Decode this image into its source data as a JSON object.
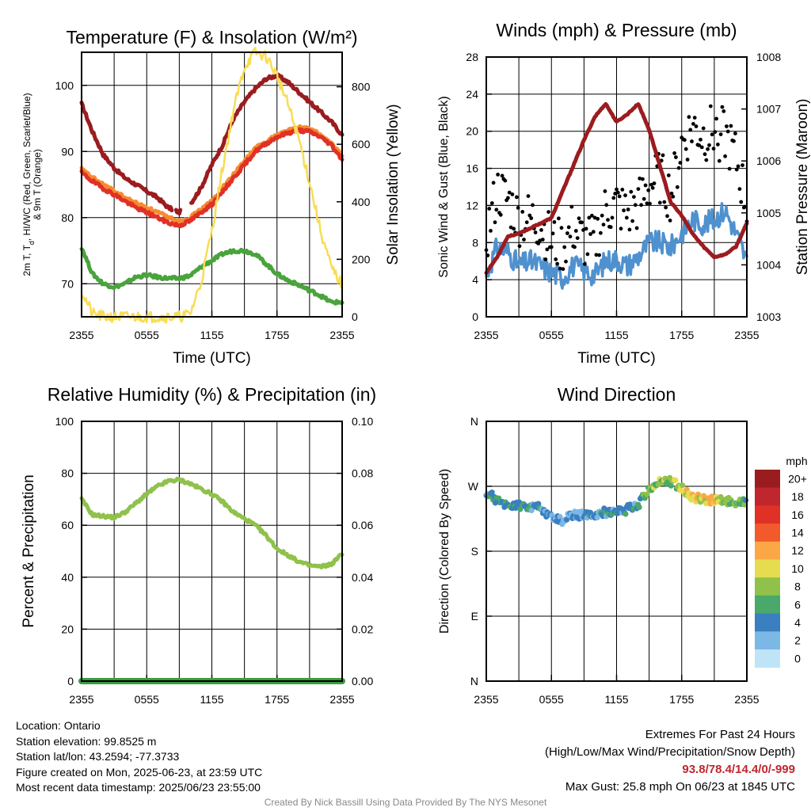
{
  "chart_data": [
    {
      "type": "line",
      "title": "Temperature (F) & Insolation (W/m²)",
      "xlabel": "Time (UTC)",
      "ylabel": "2m T, Td, HI/WC (Red, Green, Scarlet/Blue) & 9m T (Orange)",
      "ylabel_lines": [
        "2m T, T",
        "d",
        ", HI/WC (Red, Green, Scarlet/Blue)",
        "& 9m T (Orange)"
      ],
      "y2label": "Solar Insolation (Yellow)",
      "xticks": [
        "2355",
        "0555",
        "1155",
        "1755",
        "2355"
      ],
      "ylim": [
        65,
        105
      ],
      "yticks": [
        70,
        80,
        90,
        100
      ],
      "y2lim": [
        0,
        920
      ],
      "y2ticks": [
        0,
        200,
        400,
        600,
        800
      ],
      "grid": true,
      "x_hours": [
        0,
        1,
        2,
        3,
        4,
        5,
        6,
        7,
        8,
        9,
        10,
        11,
        12,
        13,
        14,
        15,
        16,
        17,
        18,
        19,
        20,
        21,
        22,
        23,
        24
      ],
      "series": [
        {
          "name": "HI/WC",
          "color": "#9b1c1f",
          "values": [
            97.2,
            93,
            89.5,
            87.5,
            86,
            85,
            84,
            83,
            81.5,
            80.8,
            82,
            84.5,
            88,
            91,
            95,
            97.5,
            99.5,
            101,
            101.5,
            100.5,
            99,
            97.5,
            96,
            94.5,
            92.5
          ]
        },
        {
          "name": "9m T",
          "color": "#f68b2f",
          "values": [
            87.3,
            86,
            85,
            84,
            83,
            82.2,
            81.5,
            80.8,
            80,
            79.5,
            80,
            81.2,
            82.5,
            84.5,
            86.5,
            88.5,
            90.5,
            91.5,
            92.5,
            93.2,
            93.6,
            93.4,
            92.5,
            91.2,
            89.3
          ]
        },
        {
          "name": "2m T",
          "color": "#e03127",
          "values": [
            86.8,
            85.5,
            84.4,
            83.5,
            82.5,
            81.5,
            80.8,
            80,
            79.2,
            78.8,
            79.5,
            80.8,
            82,
            84,
            86,
            88,
            90,
            91.2,
            92.2,
            92.8,
            93.2,
            93,
            92.2,
            91,
            88.8
          ]
        },
        {
          "name": "Td",
          "color": "#4aa33d",
          "values": [
            75.5,
            71.5,
            70,
            69.5,
            70,
            71,
            71.3,
            71,
            70.8,
            70.8,
            71.2,
            72.5,
            73.5,
            74.5,
            75,
            75,
            74.5,
            73,
            71.5,
            70.5,
            69.8,
            69,
            68.2,
            67.2,
            67.2
          ]
        },
        {
          "name": "Solar Insolation",
          "axis": "y2",
          "color": "#f8dc55",
          "values": [
            90,
            10,
            0,
            0,
            0,
            0,
            0,
            0,
            0,
            0,
            10,
            120,
            300,
            520,
            720,
            870,
            920,
            905,
            840,
            740,
            620,
            470,
            300,
            170,
            110
          ]
        }
      ]
    },
    {
      "type": "scatter",
      "title": "Winds (mph) & Pressure (mb)",
      "xlabel": "Time (UTC)",
      "ylabel": "Sonic Wind & Gust (Blue, Black)",
      "y2label": "Station Pressure (Maroon)",
      "xticks": [
        "2355",
        "0555",
        "1155",
        "1755",
        "2355"
      ],
      "ylim": [
        0,
        28
      ],
      "yticks": [
        0,
        4,
        8,
        12,
        16,
        20,
        24,
        28
      ],
      "y2lim": [
        1003,
        1008
      ],
      "y2ticks": [
        1003,
        1004,
        1005,
        1006,
        1007,
        1008
      ],
      "grid": true,
      "x_hours": [
        0,
        1,
        2,
        3,
        4,
        5,
        6,
        7,
        8,
        9,
        10,
        11,
        12,
        13,
        14,
        15,
        16,
        17,
        18,
        19,
        20,
        21,
        22,
        23,
        24
      ],
      "series": [
        {
          "name": "Sonic Wind",
          "color": "#4f91cf",
          "values": [
            4.5,
            7.5,
            7,
            5.5,
            6,
            5.5,
            4.8,
            4.2,
            5.5,
            5,
            4.5,
            6,
            6.2,
            5.5,
            6.5,
            8,
            8,
            7.5,
            9,
            10.5,
            10,
            10.5,
            11.5,
            9,
            6
          ]
        },
        {
          "name": "Gust",
          "color": "#000000",
          "values": [
            8.5,
            13.5,
            12.5,
            10.5,
            10.5,
            10,
            8,
            7.5,
            9.5,
            8,
            8,
            11.5,
            12,
            11,
            12,
            14,
            15,
            13,
            18.5,
            20.5,
            19.5,
            20,
            19.5,
            17,
            12
          ]
        },
        {
          "name": "Station Pressure",
          "axis": "y2",
          "color": "#9b1c1f",
          "values": [
            1003.85,
            1004.15,
            1004.55,
            1004.6,
            1004.7,
            1004.8,
            1004.9,
            1005.4,
            1005.9,
            1006.4,
            1006.85,
            1007.1,
            1006.75,
            1006.9,
            1007.1,
            1006.6,
            1005.9,
            1005.2,
            1004.95,
            1004.6,
            1004.35,
            1004.15,
            1004.2,
            1004.35,
            1004.8
          ]
        }
      ]
    },
    {
      "type": "line",
      "title": "Relative Humidity (%) & Precipitation (in)",
      "ylabel": "Percent & Precipitation",
      "xticks": [
        "2355",
        "0555",
        "1155",
        "1755",
        "2355"
      ],
      "ylim": [
        0,
        100
      ],
      "yticks": [
        0,
        20,
        40,
        60,
        80,
        100
      ],
      "y2lim": [
        0,
        0.1
      ],
      "y2ticks": [
        "0.00",
        "0.02",
        "0.04",
        "0.06",
        "0.08",
        "0.10"
      ],
      "grid": true,
      "x_hours": [
        0,
        1,
        2,
        3,
        4,
        5,
        6,
        7,
        8,
        9,
        10,
        11,
        12,
        13,
        14,
        15,
        16,
        17,
        18,
        19,
        20,
        21,
        22,
        23,
        24
      ],
      "series": [
        {
          "name": "Relative Humidity",
          "color": "#8fc14b",
          "values": [
            70,
            64,
            63.5,
            63,
            65,
            68.5,
            72,
            75,
            77,
            77.5,
            76,
            74,
            72,
            69,
            65,
            62.5,
            60,
            56,
            51,
            48.5,
            46,
            44.5,
            44,
            45,
            49
          ]
        },
        {
          "name": "Precipitation",
          "axis": "y2",
          "color": "#3a9c40",
          "values": [
            0,
            0,
            0,
            0,
            0,
            0,
            0,
            0,
            0,
            0,
            0,
            0,
            0,
            0,
            0,
            0,
            0,
            0,
            0,
            0,
            0,
            0,
            0,
            0,
            0
          ]
        }
      ]
    },
    {
      "type": "scatter",
      "title": "Wind Direction",
      "ylabel": "Direction (Colored By Speed)",
      "xticks": [
        "2355",
        "0555",
        "1155",
        "1755",
        "2355"
      ],
      "yticks": [
        "N",
        "E",
        "S",
        "W",
        "N"
      ],
      "ylim_deg": [
        0,
        360
      ],
      "grid": true,
      "x_hours": [
        0,
        1,
        2,
        3,
        4,
        5,
        6,
        7,
        8,
        9,
        10,
        11,
        12,
        13,
        14,
        15,
        16,
        17,
        18,
        19,
        20,
        21,
        22,
        23,
        24
      ],
      "direction_deg": [
        262,
        250,
        245,
        244,
        241,
        240,
        226,
        223,
        230,
        229,
        232,
        234,
        233,
        238,
        245,
        265,
        278,
        276,
        268,
        254,
        252,
        251,
        251,
        249,
        248
      ],
      "speed_mph": [
        5,
        6,
        6,
        6,
        5,
        5,
        4,
        4,
        4,
        4,
        5,
        5,
        6,
        5,
        6,
        8,
        9,
        8,
        10,
        11,
        11,
        11,
        9,
        8,
        7
      ],
      "colorbar": {
        "label": "mph",
        "levels": [
          "20+",
          "18",
          "16",
          "14",
          "12",
          "10",
          "8",
          "6",
          "4",
          "2",
          "0"
        ],
        "colors": [
          "#9b1c1f",
          "#c0262d",
          "#e03127",
          "#f15a2b",
          "#fba746",
          "#e6dc50",
          "#8fc14b",
          "#4aa86a",
          "#3a7fbf",
          "#7cb8e6",
          "#bfe4f7"
        ]
      }
    }
  ],
  "info": {
    "location": "Location: Ontario",
    "elevation": "Station elevation: 99.8525 m",
    "latlon": "Station lat/lon: 43.2594; -77.3733",
    "created": "Figure created on Mon, 2025-06-23, at 23:59 UTC",
    "recent": "Most recent data timestamp: 2025/06/23 23:55:00"
  },
  "extremes": {
    "title": "Extremes For Past 24 Hours",
    "subtitle": "(High/Low/Max Wind/Precipitation/Snow Depth)",
    "values": "93.8/78.4/14.4/0/-999",
    "gust": "Max Gust: 25.8 mph On 06/23 at 1845 UTC"
  },
  "credit": "Created By Nick Bassill Using Data Provided By The NYS Mesonet"
}
